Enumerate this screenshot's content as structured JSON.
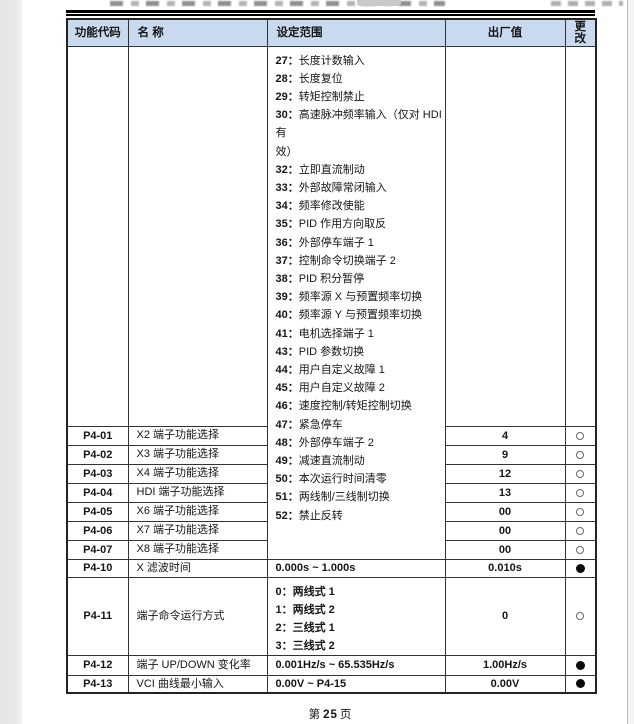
{
  "colors": {
    "header_bg": "#c9d9f0",
    "table_border": "#333333"
  },
  "footer": {
    "prefix": "第",
    "page_number": "25",
    "suffix": "页"
  },
  "table": {
    "headers": [
      "功能代码",
      "名 称",
      "设定范围",
      "出厂值",
      "更\n改"
    ],
    "setting_range_list": [
      {
        "n": "27",
        "t": "长度计数输入"
      },
      {
        "n": "28",
        "t": "长度复位"
      },
      {
        "n": "29",
        "t": "转矩控制禁止"
      },
      {
        "n": "30",
        "t": "高速脉冲频率输入（仅对 HDI 有\n效）"
      },
      {
        "n": "32",
        "t": "立即直流制动"
      },
      {
        "n": "33",
        "t": "外部故障常闭输入"
      },
      {
        "n": "34",
        "t": "频率修改使能"
      },
      {
        "n": "35",
        "t": "PID 作用方向取反"
      },
      {
        "n": "36",
        "t": "外部停车端子 1"
      },
      {
        "n": "37",
        "t": "控制命令切换端子 2"
      },
      {
        "n": "38",
        "t": "PID 积分暂停"
      },
      {
        "n": "39",
        "t": "频率源 X 与预置频率切换"
      },
      {
        "n": "40",
        "t": "频率源 Y 与预置频率切换"
      },
      {
        "n": "41",
        "t": "电机选择端子 1"
      },
      {
        "n": "43",
        "t": "PID 参数切换"
      },
      {
        "n": "44",
        "t": "用户自定义故障 1"
      },
      {
        "n": "45",
        "t": "用户自定义故障 2"
      },
      {
        "n": "46",
        "t": "速度控制/转矩控制切换"
      },
      {
        "n": "47",
        "t": "紧急停车"
      },
      {
        "n": "48",
        "t": "外部停车端子 2"
      },
      {
        "n": "49",
        "t": "减速直流制动"
      },
      {
        "n": "50",
        "t": "本次运行时间清零"
      },
      {
        "n": "51",
        "t": "两线制/三线制切换"
      },
      {
        "n": "52",
        "t": "禁止反转"
      }
    ],
    "rows": [
      {
        "code": "P4-01",
        "name": "X2 端子功能选择",
        "range": "",
        "factory": "4",
        "change": "open-circle"
      },
      {
        "code": "P4-02",
        "name": "X3 端子功能选择",
        "range": "",
        "factory": "9",
        "change": "open-circle"
      },
      {
        "code": "P4-03",
        "name": "X4 端子功能选择",
        "range": "",
        "factory": "12",
        "change": "open-circle"
      },
      {
        "code": "P4-04",
        "name": "HDI 端子功能选择",
        "range": "",
        "factory": "13",
        "change": "open-circle"
      },
      {
        "code": "P4-05",
        "name": "X6 端子功能选择",
        "range": "",
        "factory": "00",
        "change": "open-circle"
      },
      {
        "code": "P4-06",
        "name": "X7 端子功能选择",
        "range": "",
        "factory": "00",
        "change": "open-circle"
      },
      {
        "code": "P4-07",
        "name": "X8 端子功能选择",
        "range": "",
        "factory": "00",
        "change": "open-circle"
      },
      {
        "code": "P4-10",
        "name": "X 滤波时间",
        "range": "0.000s ~ 1.000s",
        "factory": "0.010s",
        "change": "filled-circle"
      },
      {
        "code": "P4-11",
        "name": "端子命令运行方式",
        "range_options": [
          {
            "n": "0",
            "t": "两线式 1"
          },
          {
            "n": "1",
            "t": "两线式 2"
          },
          {
            "n": "2",
            "t": "三线式 1"
          },
          {
            "n": "3",
            "t": "三线式 2"
          }
        ],
        "factory": "0",
        "change": "open-circle"
      },
      {
        "code": "P4-12",
        "name": "端子 UP/DOWN 变化率",
        "range": "0.001Hz/s ~ 65.535Hz/s",
        "factory": "1.00Hz/s",
        "change": "filled-circle"
      },
      {
        "code": "P4-13",
        "name": "VCI 曲线最小输入",
        "range": "0.00V ~ P4-15",
        "factory": "0.00V",
        "change": "filled-circle"
      }
    ]
  }
}
